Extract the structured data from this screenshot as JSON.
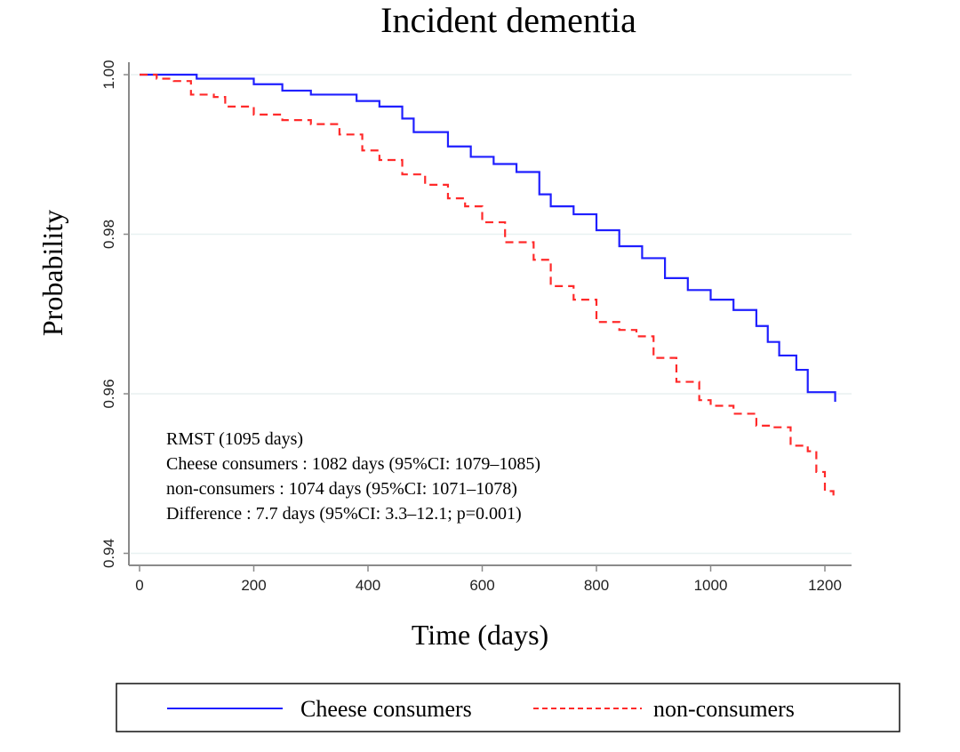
{
  "chart_data": {
    "type": "line",
    "subtype": "kaplan-meier-step",
    "title": "Incident dementia",
    "xlabel": "Time (days)",
    "ylabel": "Probability",
    "xlim": [
      0,
      1240
    ],
    "ylim": [
      0.94,
      1.0
    ],
    "xticks": [
      0,
      200,
      400,
      600,
      800,
      1000,
      1200
    ],
    "yticks": [
      0.94,
      0.96,
      0.98,
      1.0
    ],
    "ytick_labels": [
      "0.94",
      "0.96",
      "0.98",
      "1.00"
    ],
    "xtick_labels": [
      "0",
      "200",
      "400",
      "600",
      "800",
      "1000",
      "1200"
    ],
    "grid": "horizontal",
    "legend_position": "bottom",
    "series": [
      {
        "name": "Cheese consumers",
        "color": "#1f1fff",
        "style": "solid",
        "x": [
          0,
          40,
          100,
          200,
          250,
          300,
          380,
          420,
          460,
          480,
          540,
          580,
          620,
          660,
          700,
          720,
          760,
          800,
          840,
          880,
          920,
          960,
          1000,
          1040,
          1080,
          1100,
          1120,
          1150,
          1170,
          1215,
          1218
        ],
        "y": [
          1.0,
          1.0,
          0.9995,
          0.9988,
          0.998,
          0.9975,
          0.9967,
          0.996,
          0.9945,
          0.9928,
          0.991,
          0.9897,
          0.9888,
          0.9878,
          0.985,
          0.9835,
          0.9825,
          0.9805,
          0.9785,
          0.977,
          0.9745,
          0.973,
          0.9718,
          0.9705,
          0.9685,
          0.9665,
          0.9648,
          0.963,
          0.9602,
          0.9602,
          0.959
        ]
      },
      {
        "name": "non-consumers",
        "color": "#ff2a2a",
        "style": "dashed",
        "x": [
          0,
          30,
          60,
          90,
          130,
          150,
          200,
          250,
          300,
          350,
          390,
          420,
          460,
          500,
          540,
          570,
          600,
          640,
          690,
          720,
          760,
          800,
          840,
          870,
          900,
          940,
          980,
          1000,
          1040,
          1080,
          1110,
          1140,
          1170,
          1185,
          1200,
          1215
        ],
        "y": [
          1.0,
          0.9995,
          0.9992,
          0.9975,
          0.9972,
          0.996,
          0.995,
          0.9943,
          0.9938,
          0.9925,
          0.9905,
          0.9893,
          0.9875,
          0.9862,
          0.9845,
          0.9835,
          0.9815,
          0.979,
          0.9768,
          0.9735,
          0.9718,
          0.969,
          0.968,
          0.9672,
          0.9645,
          0.9615,
          0.9592,
          0.9585,
          0.9575,
          0.956,
          0.9558,
          0.9535,
          0.9528,
          0.9502,
          0.9478,
          0.9468
        ]
      }
    ],
    "annotations": [
      "RMST  (1095 days)",
      "Cheese consumers : 1082 days (95%CI: 1079–1085)",
      "non-consumers : 1074 days (95%CI: 1071–1078)",
      "Difference : 7.7 days (95%CI: 3.3–12.1; p=0.001)"
    ]
  },
  "legend": {
    "items": [
      {
        "label": "Cheese consumers",
        "color": "#1f1fff",
        "style": "solid"
      },
      {
        "label": "non-consumers",
        "color": "#ff2a2a",
        "style": "dashed"
      }
    ]
  }
}
